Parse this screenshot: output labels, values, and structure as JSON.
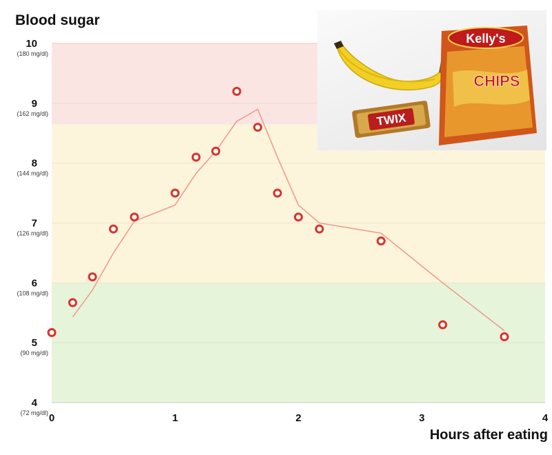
{
  "chart_data": {
    "type": "scatter",
    "title": "Blood sugar",
    "xlabel": "Hours after eating",
    "xlim": [
      0,
      4
    ],
    "ylim": [
      4,
      10
    ],
    "x_ticks": [
      {
        "value": 0,
        "label": "0"
      },
      {
        "value": 1,
        "label": "1"
      },
      {
        "value": 2,
        "label": "2"
      },
      {
        "value": 3,
        "label": "3"
      },
      {
        "value": 4,
        "label": "4"
      }
    ],
    "y_ticks": [
      {
        "value": 4,
        "label": "4",
        "sublabel": "(72 mg/dl)"
      },
      {
        "value": 5,
        "label": "5",
        "sublabel": "(90 mg/dl)"
      },
      {
        "value": 6,
        "label": "6",
        "sublabel": "(108 mg/dl)"
      },
      {
        "value": 7,
        "label": "7",
        "sublabel": "(126 mg/dl)"
      },
      {
        "value": 8,
        "label": "8",
        "sublabel": "(144 mg/dl)"
      },
      {
        "value": 9,
        "label": "9",
        "sublabel": "(162 mg/dl)"
      },
      {
        "value": 10,
        "label": "10",
        "sublabel": "(180 mg/dl)"
      }
    ],
    "bands": [
      {
        "from": 4,
        "to": 6,
        "color": "#e6f4d9"
      },
      {
        "from": 6,
        "to": 8.65,
        "color": "#fdf4dc"
      },
      {
        "from": 8.65,
        "to": 10,
        "color": "#fbe5e2"
      }
    ],
    "band_line_color": "#f3d3cd",
    "grid": true,
    "marker_color": "#d9322a",
    "line_color": "#ee9c8f",
    "series": [
      {
        "kind": "points",
        "x": [
          0,
          0.17,
          0.33,
          0.5,
          0.67,
          1.0,
          1.17,
          1.33,
          1.5,
          1.67,
          1.83,
          2.0,
          2.17,
          2.67,
          3.17,
          3.67
        ],
        "y": [
          5.17,
          5.67,
          6.1,
          6.9,
          7.1,
          7.5,
          8.1,
          8.2,
          9.2,
          8.6,
          7.5,
          7.1,
          6.9,
          6.7,
          5.3,
          5.1
        ]
      },
      {
        "kind": "line",
        "x": [
          0.17,
          0.33,
          0.5,
          0.67,
          1.0,
          1.17,
          1.33,
          1.5,
          1.67,
          1.83,
          2.0,
          2.17,
          2.67,
          3.17,
          3.67
        ],
        "y": [
          5.43,
          5.88,
          6.5,
          7.03,
          7.3,
          7.83,
          8.2,
          8.7,
          8.9,
          8.1,
          7.3,
          7.0,
          6.83,
          6.0,
          5.2
        ]
      }
    ],
    "inset_image": {
      "subject": "photo of a banana, a Twix bar and a bag of Kelly's chips",
      "package_texts": [
        "Kelly's",
        "CHIPS",
        "TWIX"
      ]
    }
  }
}
